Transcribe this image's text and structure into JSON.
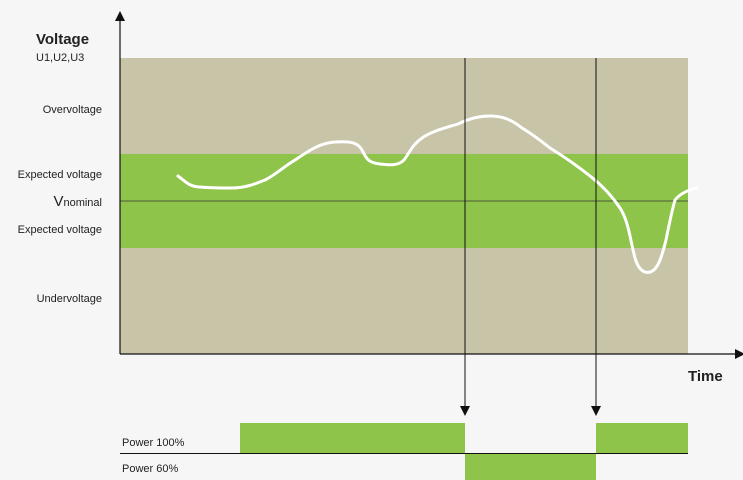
{
  "y_axis": {
    "title": "Voltage",
    "subtitle": "U1,U2,U3"
  },
  "x_axis": {
    "title": "Time"
  },
  "bands": {
    "overvoltage": "Overvoltage",
    "expected_upper": "Expected voltage",
    "nominal_main": "V",
    "nominal_sub": "nominal",
    "expected_lower": "Expected voltage",
    "undervoltage": "Undervoltage"
  },
  "power": {
    "full": "Power 100%",
    "reduced": "Power 60%"
  },
  "colors": {
    "background": "#f6f6f6",
    "outer_band": "#c8c4a8",
    "expected_band": "#8dc449",
    "voltage_curve": "#ffffff",
    "power_bar": "#8dc449",
    "axis": "#111111"
  }
}
